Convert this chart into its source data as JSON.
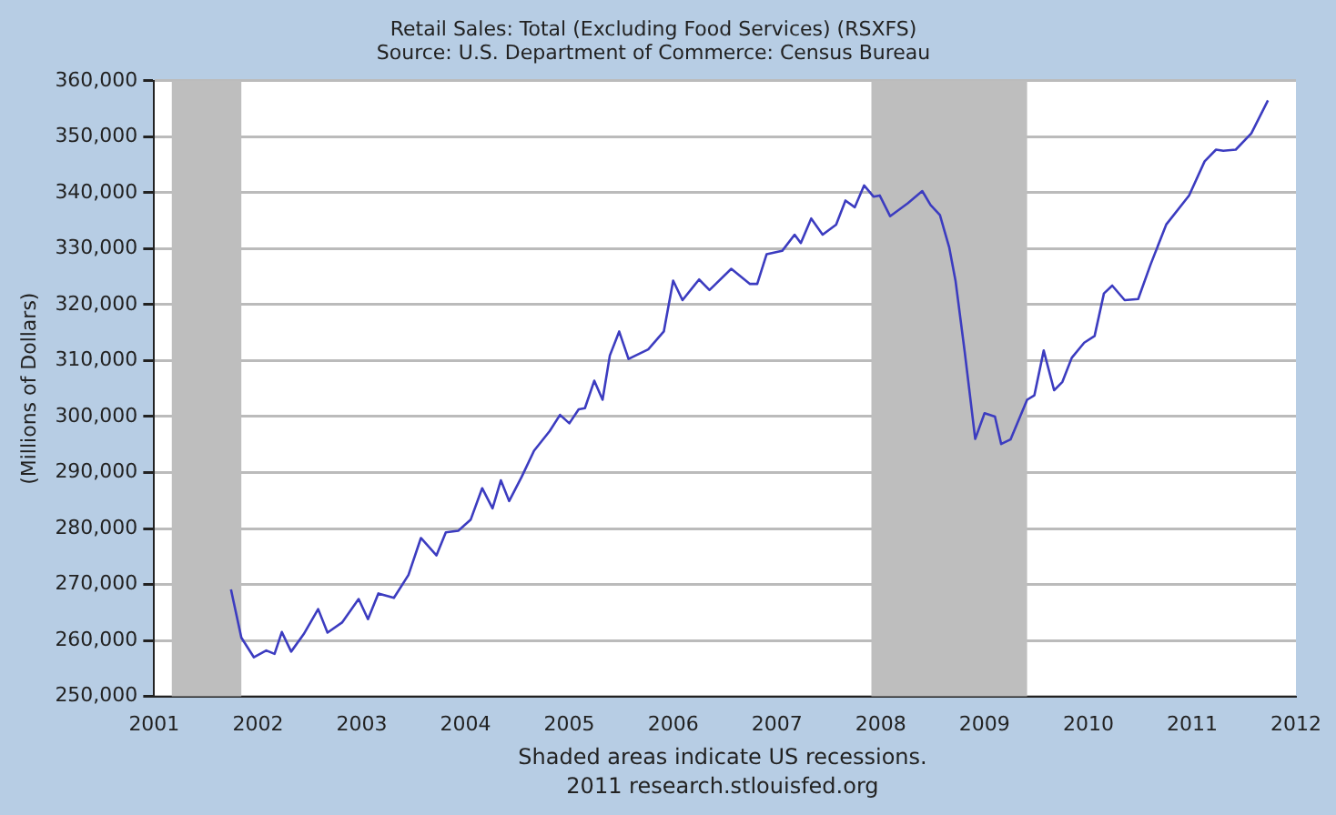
{
  "chart_data": {
    "type": "line",
    "title": "Retail Sales: Total (Excluding Food Services) (RSXFS)",
    "subtitle": "Source: U.S. Department of Commerce: Census Bureau",
    "ylabel": "(Millions of Dollars)",
    "annotations": [
      "Shaded areas indicate US recessions.",
      "2011 research.stlouisfed.org"
    ],
    "x": [
      2001.74,
      2001.84,
      2001.96,
      2002.08,
      2002.16,
      2002.23,
      2002.32,
      2002.44,
      2002.58,
      2002.67,
      2002.81,
      2002.97,
      2003.06,
      2003.16,
      2003.31,
      2003.45,
      2003.57,
      2003.72,
      2003.81,
      2003.93,
      2004.05,
      2004.16,
      2004.26,
      2004.34,
      2004.42,
      2004.54,
      2004.66,
      2004.81,
      2004.91,
      2005.0,
      2005.09,
      2005.15,
      2005.24,
      2005.32,
      2005.39,
      2005.48,
      2005.57,
      2005.76,
      2005.91,
      2006.0,
      2006.09,
      2006.25,
      2006.35,
      2006.56,
      2006.74,
      2006.81,
      2006.9,
      2007.05,
      2007.17,
      2007.23,
      2007.33,
      2007.44,
      2007.57,
      2007.66,
      2007.75,
      2007.84,
      2007.93,
      2007.99,
      2008.09,
      2008.26,
      2008.4,
      2008.48,
      2008.57,
      2008.66,
      2008.72,
      2008.81,
      2008.91,
      2009.0,
      2009.1,
      2009.16,
      2009.25,
      2009.41,
      2009.48,
      2009.57,
      2009.67,
      2009.75,
      2009.84,
      2009.96,
      2010.06,
      2010.15,
      2010.23,
      2010.35,
      2010.48,
      2010.6,
      2010.75,
      2010.97,
      2011.12,
      2011.23,
      2011.3,
      2011.42,
      2011.57,
      2011.73
    ],
    "series": [
      {
        "color": "#3c3cc0",
        "values": [
          269100,
          260500,
          257000,
          258200,
          257600,
          261500,
          258000,
          261100,
          265600,
          261400,
          263200,
          267400,
          263800,
          268400,
          267600,
          271700,
          278300,
          275200,
          279300,
          279600,
          281600,
          287200,
          283600,
          288600,
          284900,
          289200,
          293900,
          297400,
          300300,
          298800,
          301300,
          301500,
          306400,
          303000,
          310900,
          315200,
          310300,
          312000,
          315200,
          324300,
          320800,
          324500,
          322600,
          326400,
          323700,
          323700,
          329000,
          329600,
          332500,
          331000,
          335400,
          332500,
          334300,
          338600,
          337400,
          341300,
          339300,
          339500,
          335800,
          338100,
          340300,
          337800,
          336000,
          330200,
          324300,
          311400,
          296000,
          300600,
          300000,
          295100,
          295900,
          303000,
          303800,
          311800,
          304700,
          306200,
          310500,
          313200,
          314400,
          322000,
          323400,
          320800,
          321000,
          327200,
          334300,
          339500,
          345600,
          347700,
          347500,
          347700,
          350600,
          356500
        ]
      }
    ],
    "xlim": [
      2001,
      2012
    ],
    "xticks": [
      2001,
      2002,
      2003,
      2004,
      2005,
      2006,
      2007,
      2008,
      2009,
      2010,
      2011,
      2012
    ],
    "ylim": [
      250000,
      360000
    ],
    "yticks": [
      {
        "value": 250000,
        "label": "250,000"
      },
      {
        "value": 260000,
        "label": "260,000"
      },
      {
        "value": 270000,
        "label": "270,000"
      },
      {
        "value": 280000,
        "label": "280,000"
      },
      {
        "value": 290000,
        "label": "290,000"
      },
      {
        "value": 300000,
        "label": "300,000"
      },
      {
        "value": 310000,
        "label": "310,000"
      },
      {
        "value": 320000,
        "label": "320,000"
      },
      {
        "value": 330000,
        "label": "330,000"
      },
      {
        "value": 340000,
        "label": "340,000"
      },
      {
        "value": 350000,
        "label": "350,000"
      },
      {
        "value": 360000,
        "label": "360,000"
      }
    ],
    "bands": [
      {
        "axis": "x",
        "from": 2001.17,
        "to": 2001.84,
        "color": "#bebebe"
      },
      {
        "axis": "x",
        "from": 2007.91,
        "to": 2009.41,
        "color": "#bebebe"
      }
    ],
    "grid": "y",
    "legend": false,
    "marker": "none",
    "line_style": "solid"
  }
}
